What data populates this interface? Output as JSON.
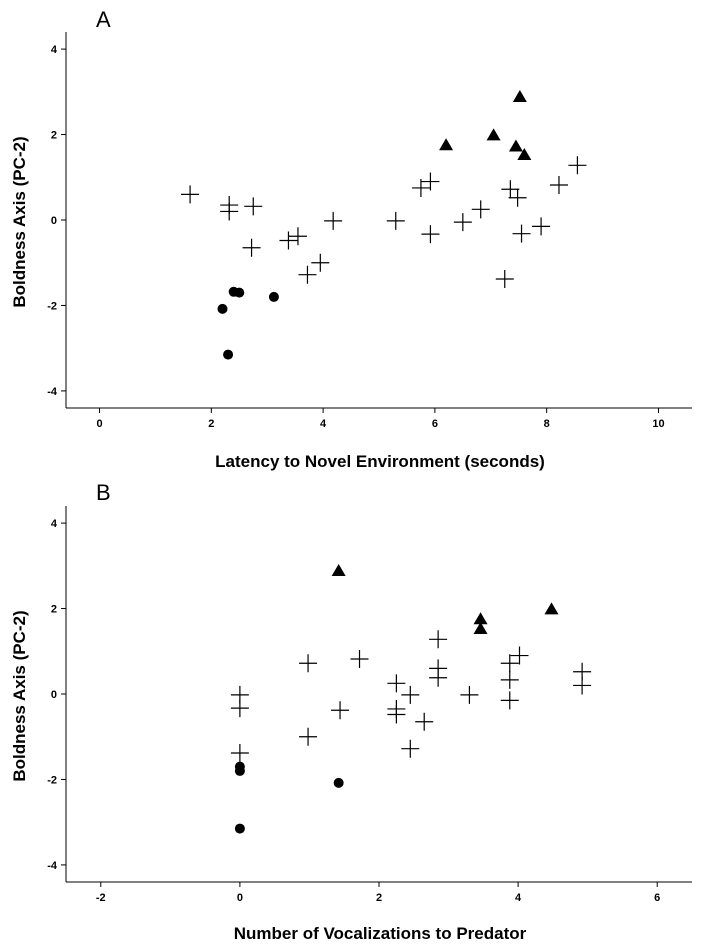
{
  "colors": {
    "axis": "#000000",
    "marker": "#000000",
    "background": "#ffffff"
  },
  "chart_data": [
    {
      "type": "scatter",
      "panel_label": "A",
      "xlabel": "Latency to Novel Environment (seconds)",
      "ylabel": "Boldness Axis (PC-2)",
      "xlim": [
        -0.6,
        10.6
      ],
      "ylim": [
        -4.4,
        4.4
      ],
      "xticks": [
        0,
        2,
        4,
        6,
        8,
        10
      ],
      "yticks": [
        -4,
        -2,
        0,
        2,
        4
      ],
      "grid": false,
      "legend": "none",
      "series": [
        {
          "marker": "triangle",
          "points": [
            [
              6.2,
              1.75
            ],
            [
              7.05,
              1.98
            ],
            [
              7.45,
              1.72
            ],
            [
              7.52,
              2.88
            ],
            [
              7.6,
              1.52
            ]
          ]
        },
        {
          "marker": "plus",
          "points": [
            [
              1.62,
              0.6
            ],
            [
              2.32,
              0.35
            ],
            [
              2.32,
              0.2
            ],
            [
              2.75,
              0.32
            ],
            [
              2.72,
              -0.65
            ],
            [
              3.38,
              -0.48
            ],
            [
              3.55,
              -0.38
            ],
            [
              3.72,
              -1.28
            ],
            [
              3.95,
              -1.0
            ],
            [
              4.18,
              -0.02
            ],
            [
              5.3,
              -0.02
            ],
            [
              5.75,
              0.75
            ],
            [
              5.92,
              0.9
            ],
            [
              5.92,
              -0.33
            ],
            [
              6.5,
              -0.05
            ],
            [
              6.82,
              0.25
            ],
            [
              7.25,
              -1.38
            ],
            [
              7.35,
              0.72
            ],
            [
              7.48,
              0.52
            ],
            [
              7.55,
              -0.32
            ],
            [
              7.9,
              -0.15
            ],
            [
              8.22,
              0.82
            ],
            [
              8.55,
              1.28
            ]
          ]
        },
        {
          "marker": "circle",
          "points": [
            [
              2.2,
              -2.08
            ],
            [
              2.3,
              -3.15
            ],
            [
              2.4,
              -1.68
            ],
            [
              2.5,
              -1.7
            ],
            [
              3.12,
              -1.8
            ]
          ]
        }
      ]
    },
    {
      "type": "scatter",
      "panel_label": "B",
      "xlabel": "Number of Vocalizations to Predator",
      "ylabel": "Boldness Axis (PC-2)",
      "xlim": [
        -2.5,
        6.5
      ],
      "ylim": [
        -4.4,
        4.4
      ],
      "xticks": [
        -2,
        0,
        2,
        4,
        6
      ],
      "yticks": [
        -4,
        -2,
        0,
        2,
        4
      ],
      "grid": false,
      "legend": "none",
      "series": [
        {
          "marker": "triangle",
          "points": [
            [
              1.42,
              2.88
            ],
            [
              3.46,
              1.75
            ],
            [
              3.46,
              1.52
            ],
            [
              4.48,
              1.98
            ]
          ]
        },
        {
          "marker": "plus",
          "points": [
            [
              0.0,
              -0.02
            ],
            [
              0.0,
              -0.33
            ],
            [
              0.0,
              -1.38
            ],
            [
              0.98,
              0.72
            ],
            [
              0.98,
              -1.0
            ],
            [
              1.44,
              -0.38
            ],
            [
              1.72,
              0.82
            ],
            [
              2.25,
              0.25
            ],
            [
              2.25,
              -0.35
            ],
            [
              2.25,
              -0.48
            ],
            [
              2.45,
              -0.02
            ],
            [
              2.45,
              -1.28
            ],
            [
              2.65,
              -0.65
            ],
            [
              2.85,
              1.28
            ],
            [
              2.85,
              0.6
            ],
            [
              2.85,
              0.38
            ],
            [
              3.3,
              -0.02
            ],
            [
              3.88,
              0.72
            ],
            [
              3.88,
              0.33
            ],
            [
              3.88,
              -0.15
            ],
            [
              4.02,
              0.9
            ],
            [
              4.92,
              0.52
            ],
            [
              4.92,
              0.2
            ]
          ]
        },
        {
          "marker": "circle",
          "points": [
            [
              0.0,
              -1.7
            ],
            [
              0.0,
              -1.8
            ],
            [
              0.0,
              -3.15
            ],
            [
              1.42,
              -2.08
            ]
          ]
        }
      ]
    }
  ]
}
